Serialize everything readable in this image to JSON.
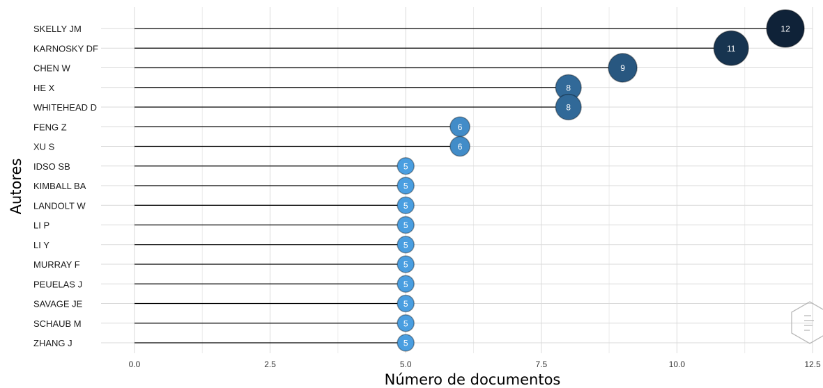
{
  "chart_data": {
    "type": "lollipop",
    "xlabel": "Número de documentos",
    "ylabel": "Autores",
    "xlim": [
      0,
      12.5
    ],
    "xticks": [
      "0.0",
      "2.5",
      "5.0",
      "7.5",
      "10.0",
      "12.5"
    ],
    "grid": true,
    "categories": [
      "SKELLY JM",
      "KARNOSKY DF",
      "CHEN W",
      "HE X",
      "WHITEHEAD D",
      "FENG Z",
      "XU S",
      "IDSO SB",
      "KIMBALL BA",
      "LANDOLT W",
      "LI P",
      "LI Y",
      "MURRAY F",
      "PEUELAS J",
      "SAVAGE JE",
      "SCHAUB M",
      "ZHANG J"
    ],
    "values": [
      12,
      11,
      9,
      8,
      8,
      6,
      6,
      5,
      5,
      5,
      5,
      5,
      5,
      5,
      5,
      5,
      5
    ],
    "color_scale": {
      "low": "#4a9ee0",
      "high": "#0f2238"
    }
  }
}
